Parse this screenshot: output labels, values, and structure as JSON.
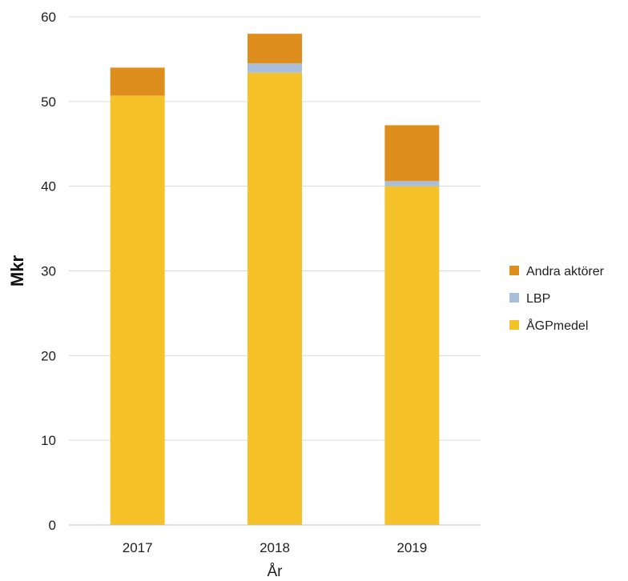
{
  "chart_data": {
    "type": "bar",
    "stacked": true,
    "title": "",
    "xlabel": "År",
    "ylabel": "Mkr",
    "categories": [
      "2017",
      "2018",
      "2019"
    ],
    "series": [
      {
        "name": "ÅGPmedel",
        "values": [
          50.7,
          53.4,
          40.0
        ],
        "color": "#F5C22A"
      },
      {
        "name": "LBP",
        "values": [
          0.0,
          1.1,
          0.6
        ],
        "color": "#A9BEDA"
      },
      {
        "name": "Andra aktörer",
        "values": [
          3.3,
          3.5,
          6.6
        ],
        "color": "#DE8E1C"
      }
    ],
    "legend_order": [
      "Andra aktörer",
      "LBP",
      "ÅGPmedel"
    ],
    "ylim": [
      0,
      60
    ],
    "yticks": [
      "0",
      "10",
      "20",
      "30",
      "40",
      "50",
      "60"
    ],
    "grid": true,
    "legend_position": "right",
    "gridline_color": "#D9D9D9"
  }
}
